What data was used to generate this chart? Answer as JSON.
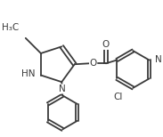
{
  "bg_color": "#ffffff",
  "line_color": "#3a3a3a",
  "line_width": 1.3,
  "font_size": 7.0,
  "figsize": [
    1.83,
    1.54
  ],
  "dpi": 100,
  "xlim": [
    0,
    183
  ],
  "ylim": [
    0,
    154
  ]
}
